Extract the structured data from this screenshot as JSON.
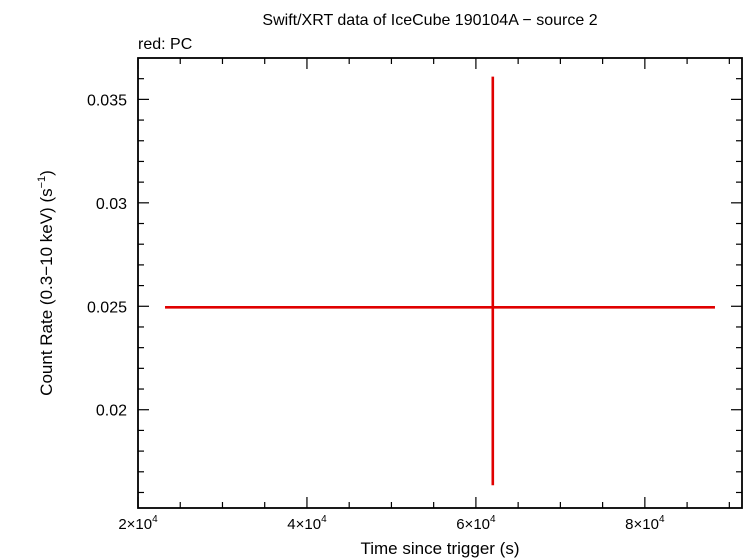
{
  "chart_data": {
    "type": "scatter",
    "title": "Swift/XRT data of IceCube 190104A − source 2",
    "subtitle": "red: PC",
    "xlabel": "Time since trigger (s)",
    "ylabel_main": "Count Rate (0.3−10 keV) (s",
    "ylabel_sup": "−1",
    "ylabel_end": ")",
    "xlim": [
      20000,
      91500
    ],
    "ylim": [
      0.01525,
      0.037
    ],
    "x_ticks": [
      {
        "value": 20000,
        "mantissa": "2×10",
        "exp": "4"
      },
      {
        "value": 40000,
        "mantissa": "4×10",
        "exp": "4"
      },
      {
        "value": 60000,
        "mantissa": "6×10",
        "exp": "4"
      },
      {
        "value": 80000,
        "mantissa": "8×10",
        "exp": "4"
      }
    ],
    "y_ticks": [
      {
        "value": 0.02,
        "label": "0.02"
      },
      {
        "value": 0.025,
        "label": "0.025"
      },
      {
        "value": 0.03,
        "label": "0.03"
      },
      {
        "value": 0.035,
        "label": "0.035"
      }
    ],
    "series": [
      {
        "color": "#e00000",
        "points": [
          {
            "x": 62000,
            "xlo": 23200,
            "xhi": 88300,
            "y": 0.02495,
            "ylo": 0.01635,
            "yhi": 0.0361
          }
        ]
      }
    ]
  }
}
